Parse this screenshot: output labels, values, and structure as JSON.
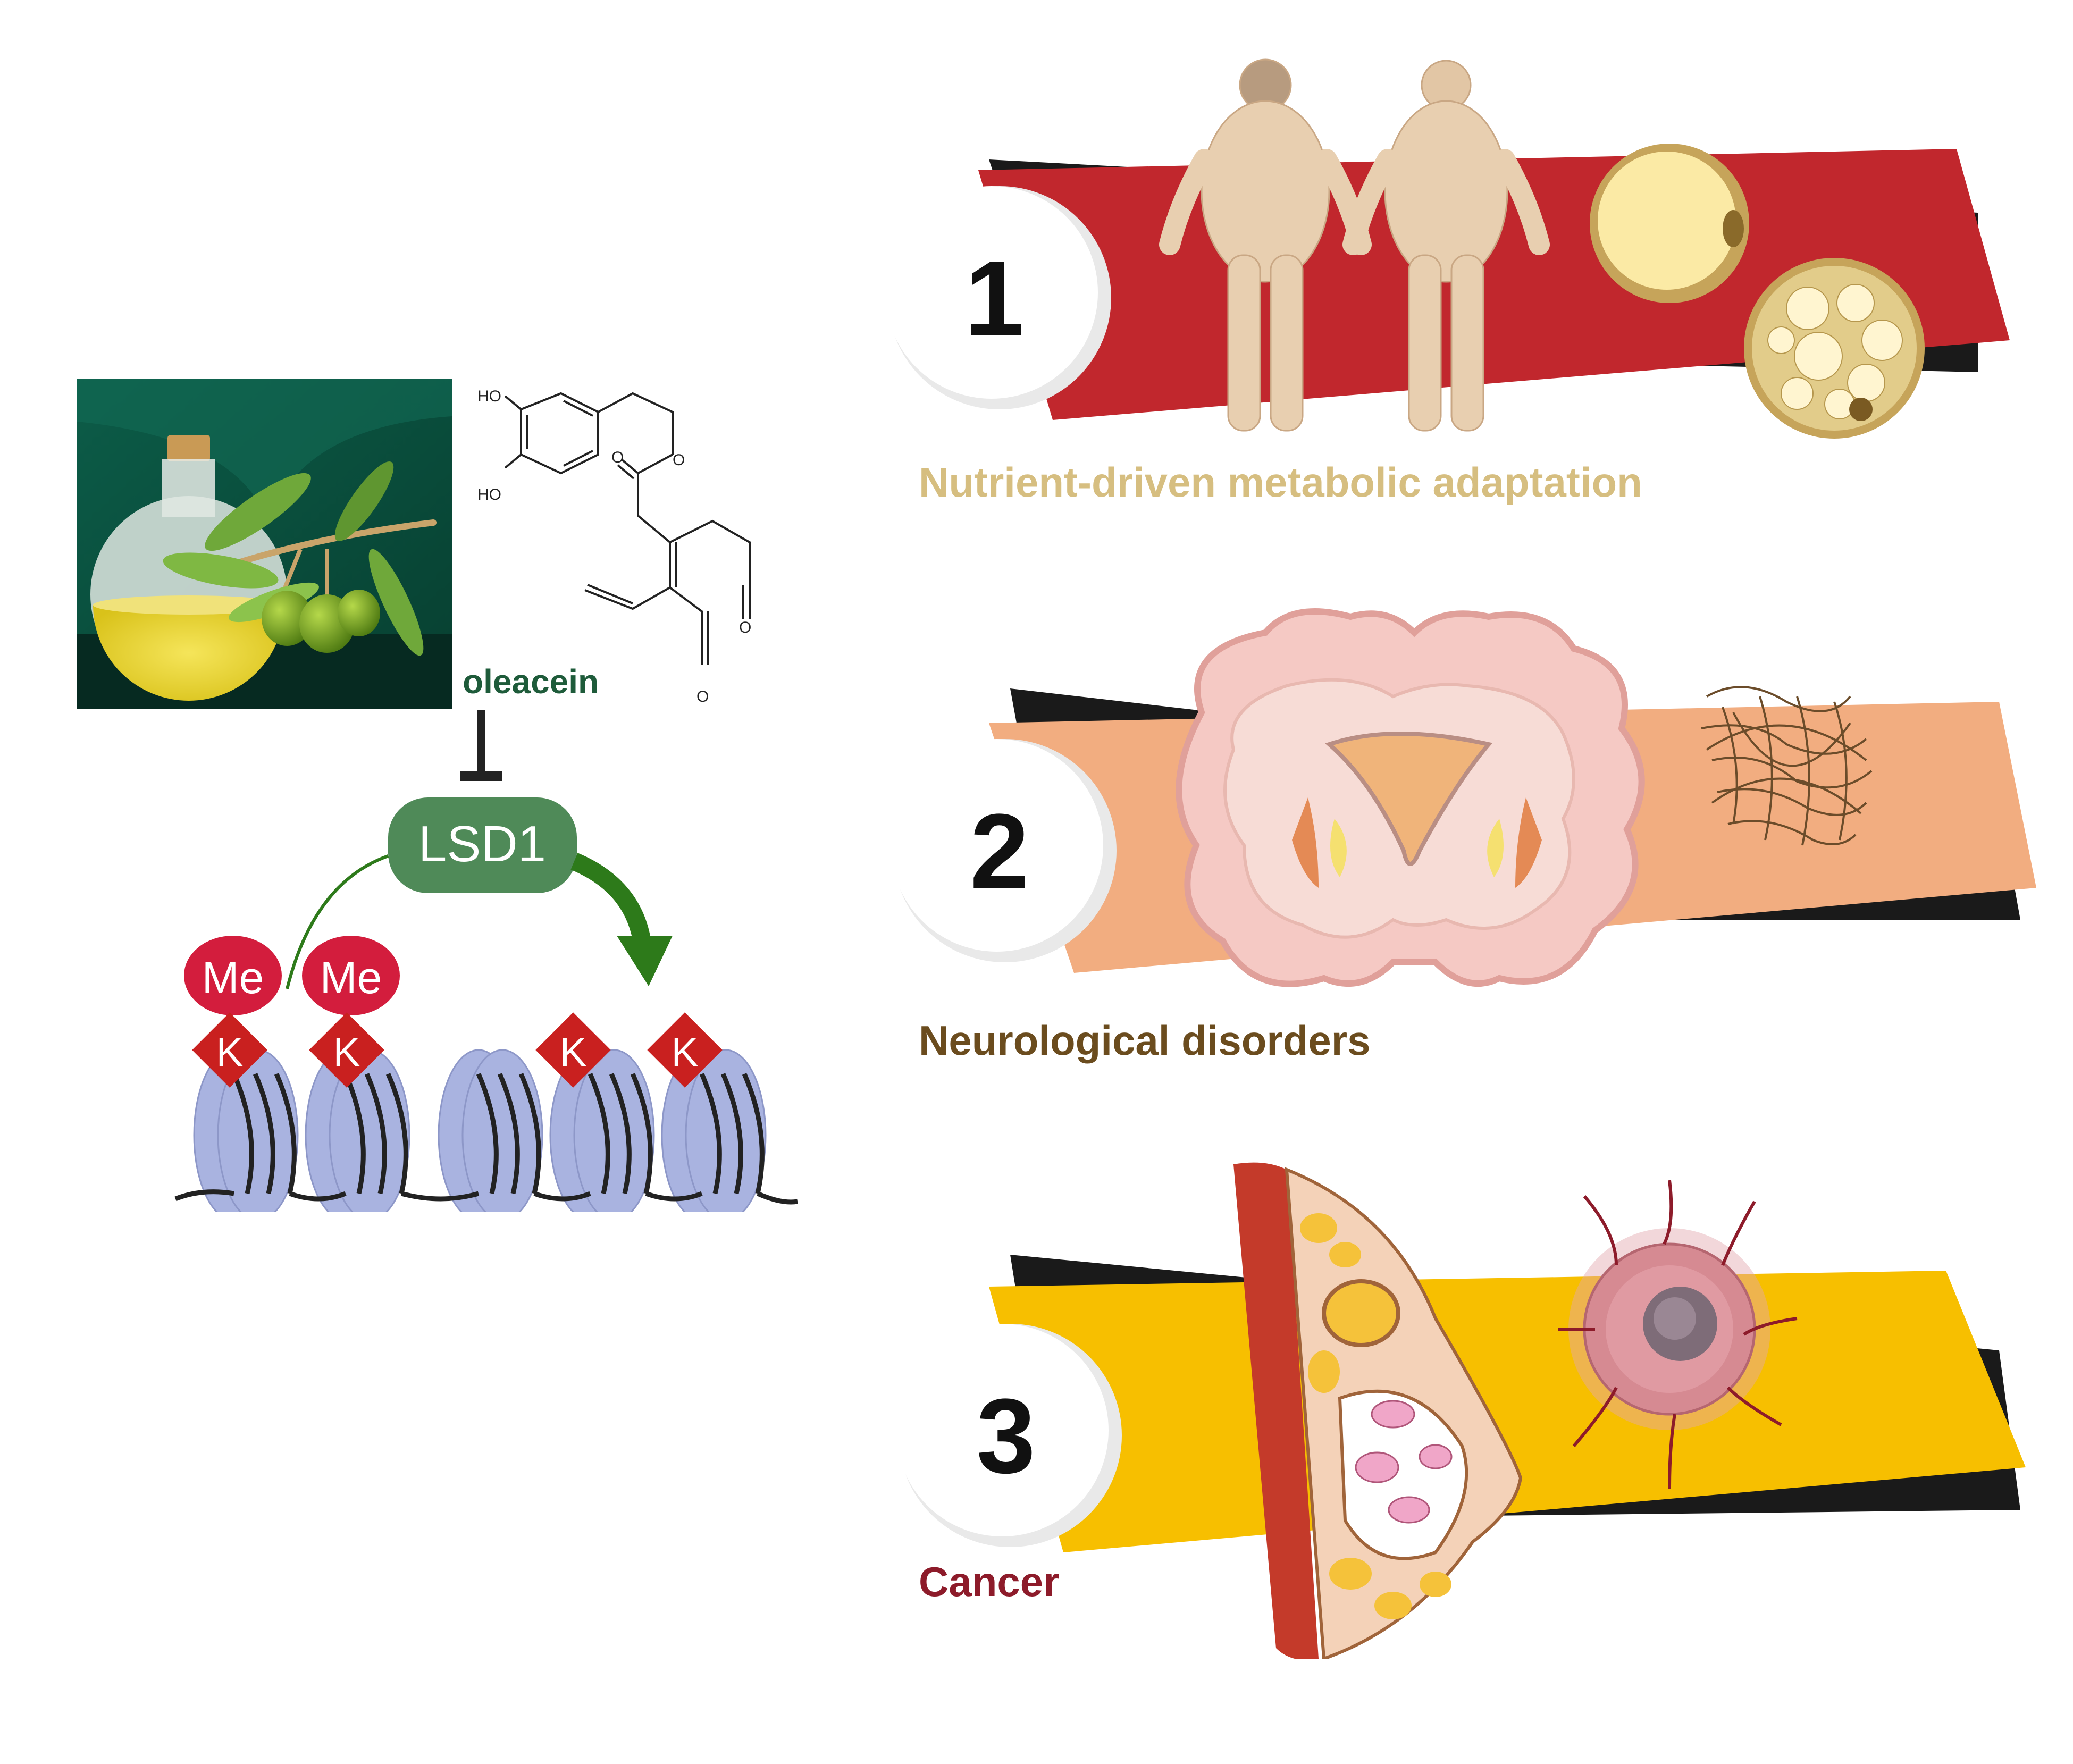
{
  "left_panel": {
    "compound_name": "oleacein",
    "enzyme_label": "LSD1",
    "methyl_badge": "Me",
    "lysine_badge": "K",
    "chem_groups": {
      "ho_top": "HO",
      "ho_bottom": "HO",
      "o_ring": "O",
      "o_carbonyl": "O",
      "o_aldehyde_1": "O",
      "o_aldehyde_2": "O"
    }
  },
  "panels": [
    {
      "number": "1",
      "caption": "Nutrient-driven metabolic adaptation",
      "band_color": "#c1272d",
      "caption_color": "#d6be80"
    },
    {
      "number": "2",
      "caption": "Neurological disorders",
      "band_color": "#f2ad80",
      "caption_color": "#6b4c1e"
    },
    {
      "number": "3",
      "caption": "Cancer",
      "band_color": "#f7bf00",
      "caption_color": "#8d1b2a"
    }
  ],
  "colors": {
    "lsd1_fill": "#4f8a58",
    "arrow_green": "#2d7a1a",
    "me_red": "#d31d3d",
    "k_red": "#c9201f",
    "nucleosome": "#a9b3e0",
    "oleacein_text": "#1e5b3a",
    "dark_band": "#1a1a1a"
  }
}
